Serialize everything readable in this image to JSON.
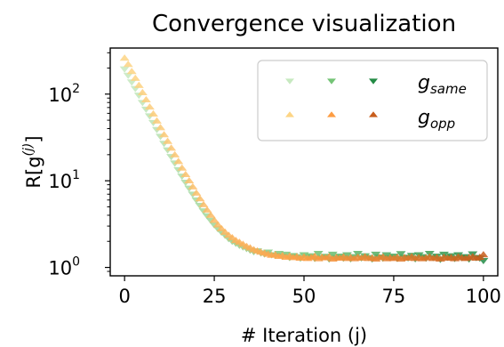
{
  "chart_data": {
    "type": "scatter",
    "title": "Convergence visualization",
    "xlabel": "# Iteration (j)",
    "ylabel": {
      "base": "R[g",
      "sup": "(j)",
      "close": "]"
    },
    "yscale": "log",
    "xlim": [
      -4,
      104
    ],
    "ylim": [
      0.8,
      340
    ],
    "xticks": [
      0,
      25,
      50,
      75,
      100
    ],
    "xtick_labels": [
      "0",
      "25",
      "50",
      "75",
      "100"
    ],
    "yticks": [
      1,
      10,
      100
    ],
    "ytick_labels": [
      {
        "base": "10",
        "exp": "0"
      },
      {
        "base": "10",
        "exp": "1"
      },
      {
        "base": "10",
        "exp": "2"
      }
    ],
    "grid": false,
    "legend_position": "top-right",
    "series": [
      {
        "name_base": "g",
        "name_sub": "same",
        "marker": "triangle-down",
        "colors": [
          "#c7e9c0",
          "#74c476",
          "#238b45"
        ],
        "x": [
          0,
          1,
          2,
          3,
          4,
          5,
          6,
          7,
          8,
          9,
          10,
          11,
          12,
          13,
          14,
          15,
          16,
          17,
          18,
          19,
          20,
          21,
          22,
          23,
          24,
          25,
          26,
          27,
          28,
          29,
          30,
          31,
          32,
          33,
          34,
          35,
          36,
          37,
          38,
          39,
          40,
          41,
          42,
          43,
          44,
          45,
          46,
          47,
          48,
          49,
          50,
          51,
          52,
          53,
          54,
          55,
          56,
          57,
          58,
          59,
          60,
          61,
          62,
          63,
          64,
          65,
          66,
          67,
          68,
          69,
          70,
          71,
          72,
          73,
          74,
          75,
          76,
          77,
          78,
          79,
          80,
          81,
          82,
          83,
          84,
          85,
          86,
          87,
          88,
          89,
          90,
          91,
          92,
          93,
          94,
          95,
          96,
          97,
          98,
          99,
          100
        ],
        "values": [
          195,
          165,
          138,
          116,
          97,
          80,
          67,
          56,
          47,
          39,
          32.5,
          27,
          22.7,
          19,
          16,
          13.4,
          11.3,
          9.6,
          8.2,
          7.0,
          6.0,
          5.2,
          4.5,
          3.95,
          3.5,
          3.1,
          2.8,
          2.55,
          2.35,
          2.15,
          2.0,
          1.9,
          1.8,
          1.72,
          1.65,
          1.58,
          1.52,
          1.55,
          1.47,
          1.43,
          1.5,
          1.4,
          1.38,
          1.45,
          1.35,
          1.42,
          1.3,
          1.37,
          1.33,
          1.28,
          1.4,
          1.32,
          1.36,
          1.27,
          1.45,
          1.3,
          1.34,
          1.25,
          1.42,
          1.3,
          1.35,
          1.28,
          1.4,
          1.26,
          1.33,
          1.45,
          1.29,
          1.36,
          1.3,
          1.25,
          1.42,
          1.32,
          1.28,
          1.4,
          1.3,
          1.35,
          1.27,
          1.44,
          1.31,
          1.29,
          1.38,
          1.26,
          1.4,
          1.33,
          1.28,
          1.45,
          1.3,
          1.35,
          1.24,
          1.42,
          1.31,
          1.36,
          1.27,
          1.4,
          1.3,
          1.33,
          1.25,
          1.43,
          1.3,
          1.28,
          1.2
        ]
      },
      {
        "name_base": "g",
        "name_sub": "opp",
        "marker": "triangle-up",
        "colors": [
          "#fdd585",
          "#fd9d43",
          "#c85d1c"
        ],
        "x": [
          0,
          1,
          2,
          3,
          4,
          5,
          6,
          7,
          8,
          9,
          10,
          11,
          12,
          13,
          14,
          15,
          16,
          17,
          18,
          19,
          20,
          21,
          22,
          23,
          24,
          25,
          26,
          27,
          28,
          29,
          30,
          31,
          32,
          33,
          34,
          35,
          36,
          37,
          38,
          39,
          40,
          41,
          42,
          43,
          44,
          45,
          46,
          47,
          48,
          49,
          50,
          51,
          52,
          53,
          54,
          55,
          56,
          57,
          58,
          59,
          60,
          61,
          62,
          63,
          64,
          65,
          66,
          67,
          68,
          69,
          70,
          71,
          72,
          73,
          74,
          75,
          76,
          77,
          78,
          79,
          80,
          81,
          82,
          83,
          84,
          85,
          86,
          87,
          88,
          89,
          90,
          91,
          92,
          93,
          94,
          95,
          96,
          97,
          98,
          99,
          100
        ],
        "values": [
          260,
          220,
          182,
          152,
          126,
          104,
          86,
          71,
          59,
          49,
          41,
          34,
          28.5,
          23.8,
          19.9,
          16.7,
          14,
          11.8,
          10,
          8.5,
          7.2,
          6.2,
          5.3,
          4.6,
          4.0,
          3.5,
          3.1,
          2.8,
          2.55,
          2.35,
          2.2,
          2.05,
          1.95,
          1.85,
          1.75,
          1.68,
          1.6,
          1.55,
          1.5,
          1.46,
          1.42,
          1.38,
          1.4,
          1.34,
          1.37,
          1.31,
          1.35,
          1.3,
          1.33,
          1.28,
          1.32,
          1.27,
          1.3,
          1.34,
          1.26,
          1.31,
          1.29,
          1.33,
          1.25,
          1.3,
          1.28,
          1.32,
          1.27,
          1.3,
          1.26,
          1.31,
          1.28,
          1.33,
          1.27,
          1.29,
          1.25,
          1.3,
          1.32,
          1.26,
          1.29,
          1.27,
          1.31,
          1.25,
          1.3,
          1.28,
          1.33,
          1.27,
          1.3,
          1.26,
          1.29,
          1.32,
          1.27,
          1.3,
          1.25,
          1.31,
          1.28,
          1.3,
          1.26,
          1.32,
          1.29,
          1.27,
          1.3,
          1.33,
          1.28,
          1.31,
          1.4
        ]
      }
    ]
  }
}
